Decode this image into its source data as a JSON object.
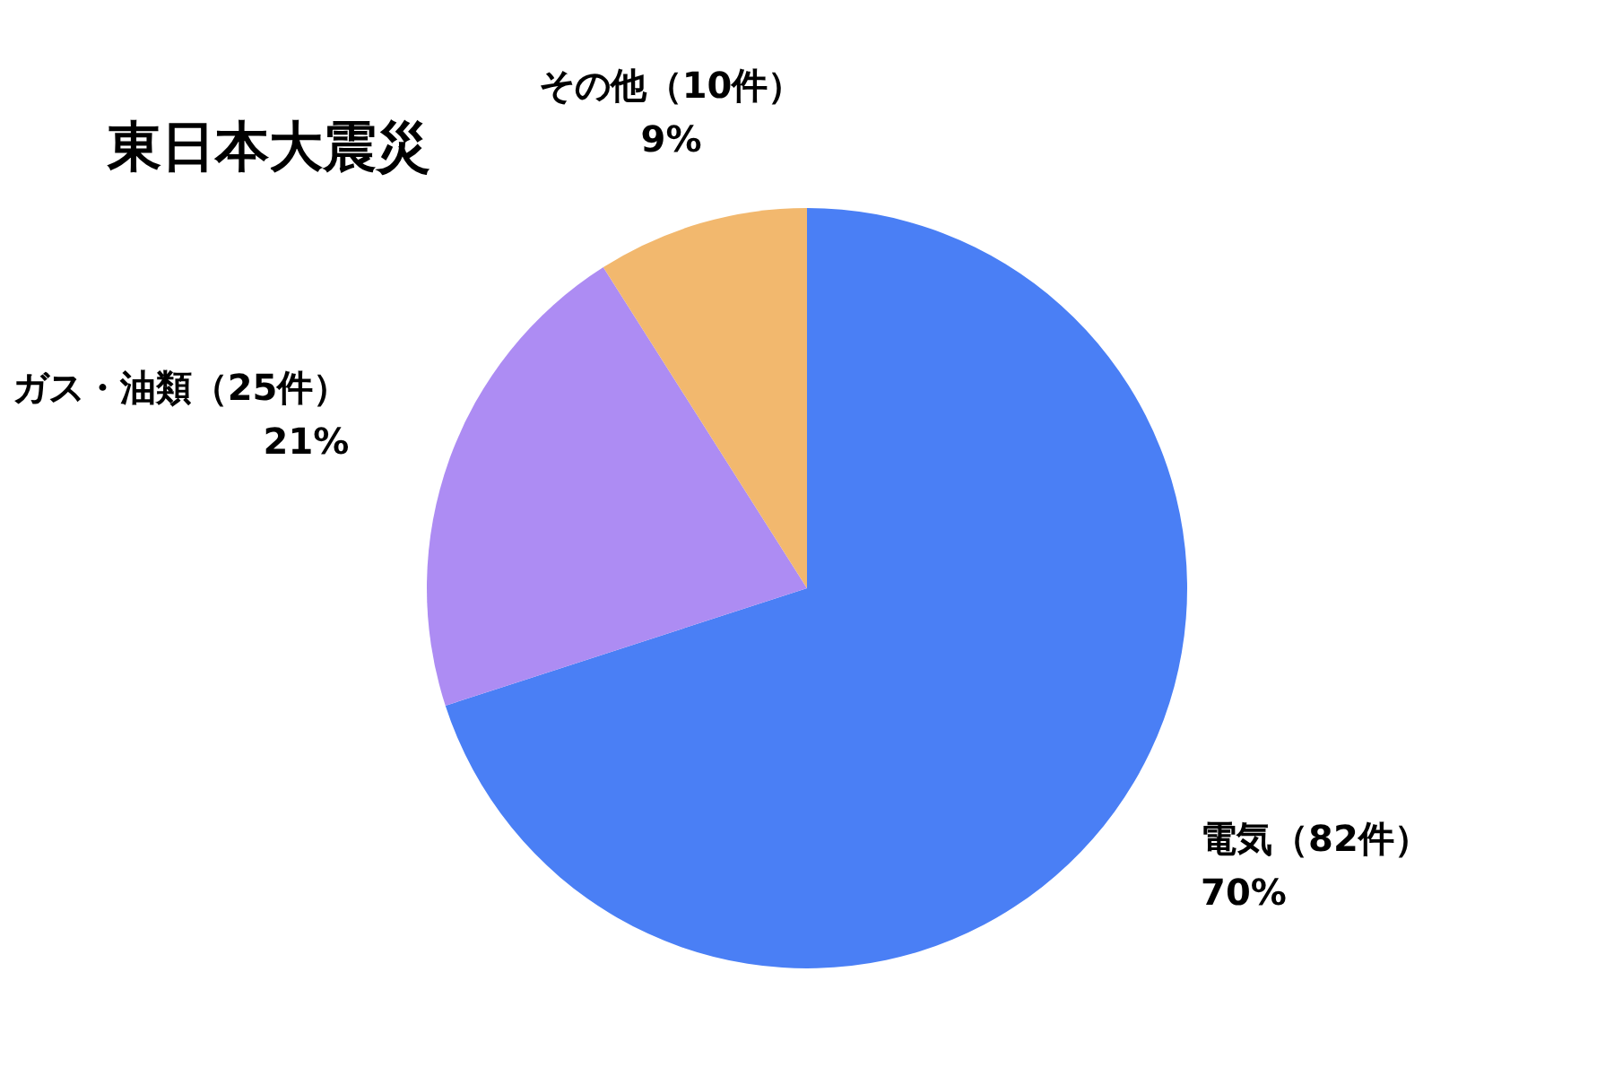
{
  "chart_data": {
    "type": "pie",
    "title": "東日本大震災",
    "categories": [
      "電気（82件）",
      "ガス・油類（25件）",
      "その他（10件）"
    ],
    "values": [
      70,
      21,
      9
    ],
    "colors": [
      "#4a7ff5",
      "#ad8cf3",
      "#f2b86e"
    ],
    "value_labels": [
      "70%",
      "21%",
      "9%"
    ]
  }
}
